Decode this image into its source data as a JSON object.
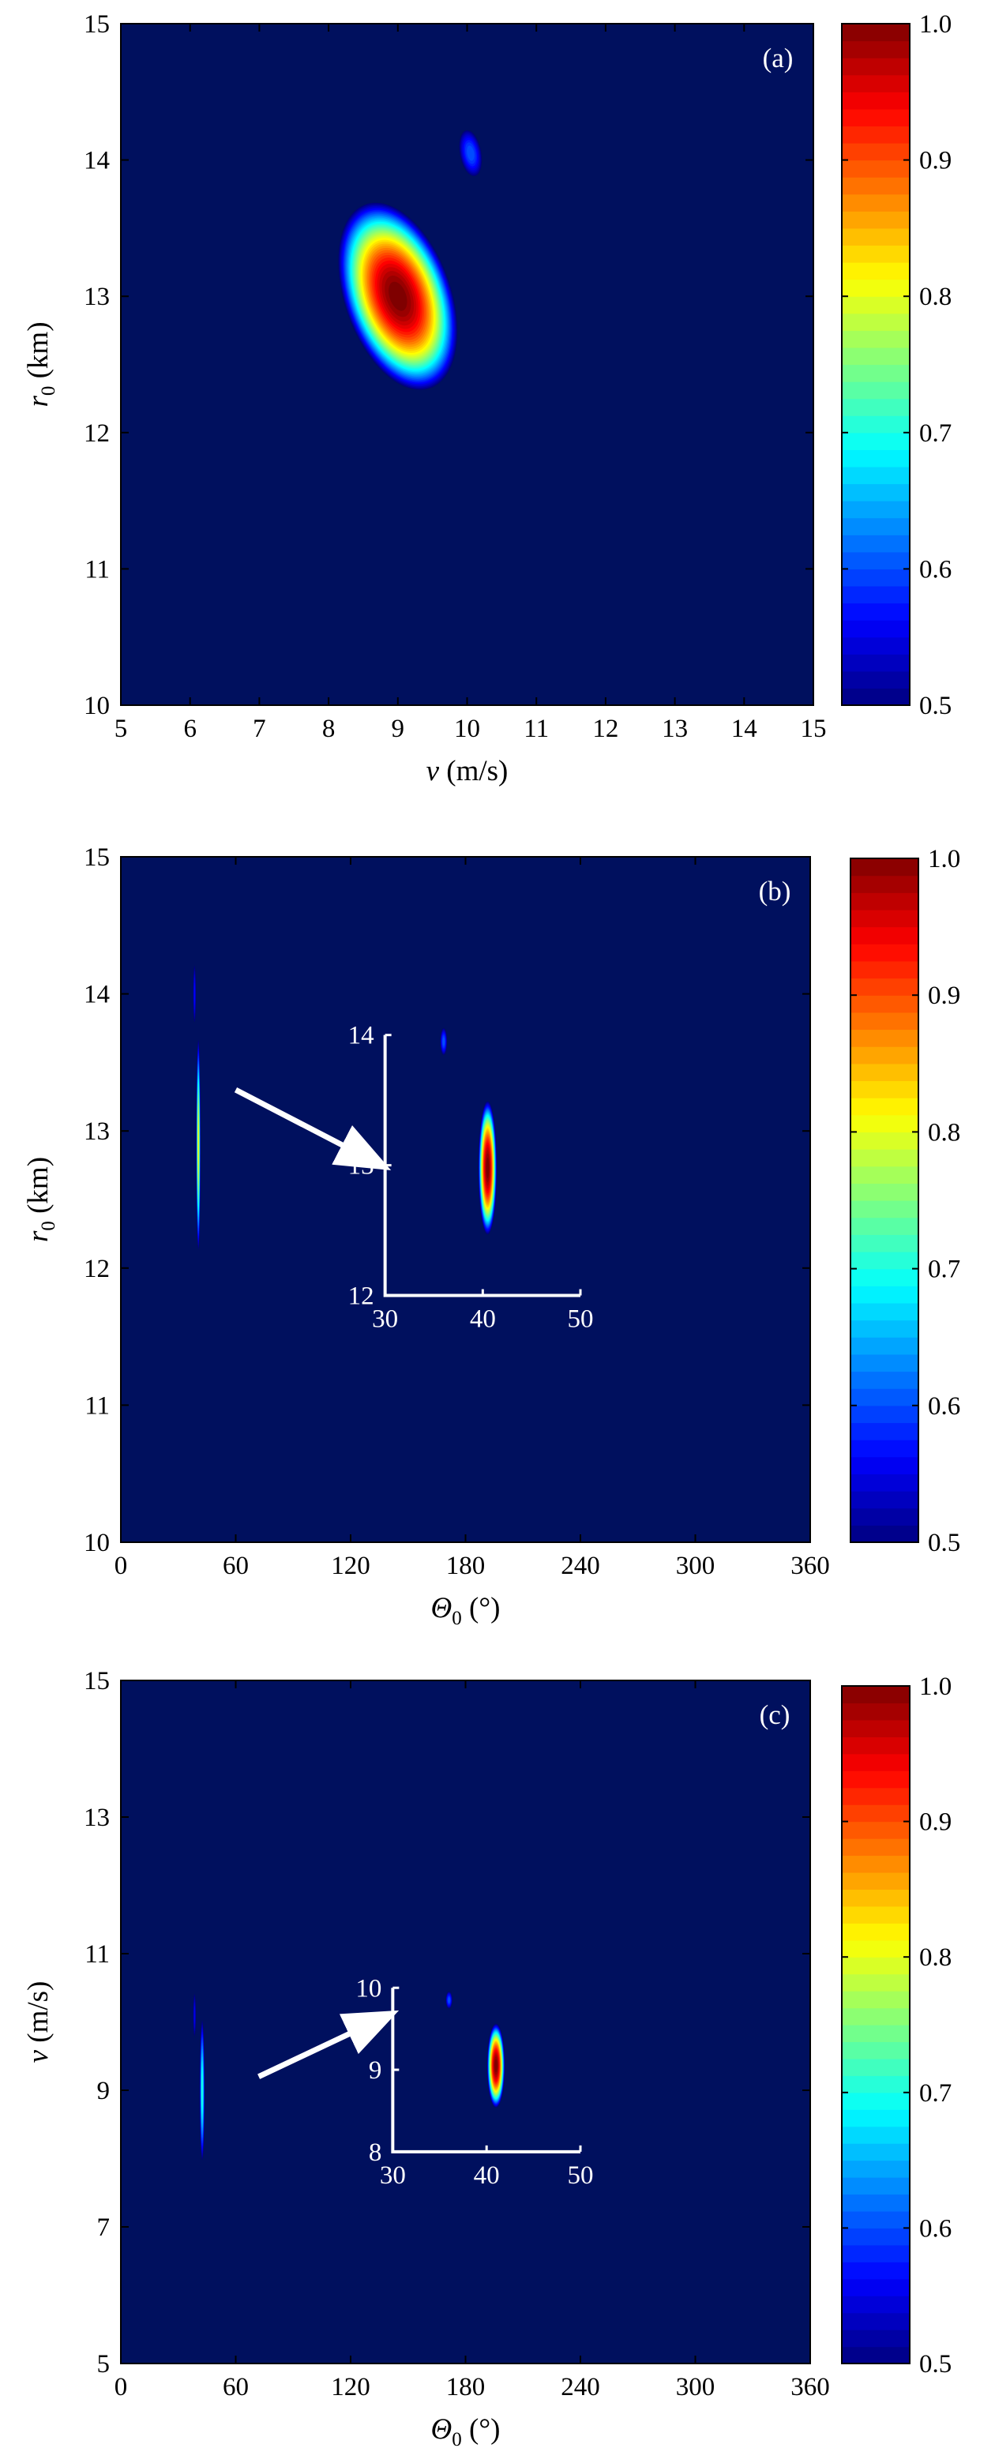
{
  "colormap": {
    "stops": [
      "#00007f",
      "#0000ff",
      "#007fff",
      "#00ffff",
      "#7fff7f",
      "#ffff00",
      "#ff7f00",
      "#ff0000",
      "#7f0000"
    ],
    "background": "#00105e",
    "levels": 40
  },
  "chart_data": [
    {
      "type": "heatmap",
      "panel_label": "(a)",
      "xlabel": {
        "sym": "v",
        "sub": "",
        "unit": " (m/s)"
      },
      "ylabel": {
        "sym": "r",
        "sub": "0",
        "unit": " (km)"
      },
      "xlim": [
        5,
        15
      ],
      "ylim": [
        10,
        15
      ],
      "xticks": [
        5,
        6,
        7,
        8,
        9,
        10,
        11,
        12,
        13,
        14,
        15
      ],
      "yticks": [
        10,
        11,
        12,
        13,
        14,
        15
      ],
      "colorbar": {
        "range": [
          0.5,
          1.0
        ],
        "ticks": [
          "0.5",
          "0.6",
          "0.7",
          "0.8",
          "0.9",
          "1.0"
        ]
      },
      "peaks": [
        {
          "x": 9.0,
          "y": 13.0,
          "value": 1.0,
          "sx": 0.45,
          "sy": 0.42,
          "rho": -0.55
        },
        {
          "x": 10.05,
          "y": 14.05,
          "value": 0.6,
          "sx": 0.09,
          "sy": 0.1,
          "rho": -0.3
        }
      ],
      "arrow": null,
      "inset": null
    },
    {
      "type": "heatmap",
      "panel_label": "(b)",
      "xlabel": {
        "sym": "Θ",
        "sub": "0",
        "unit": " (°)"
      },
      "ylabel": {
        "sym": "r",
        "sub": "0",
        "unit": " (km)"
      },
      "xlim": [
        0,
        360
      ],
      "ylim": [
        10,
        15
      ],
      "xticks": [
        0,
        60,
        120,
        180,
        240,
        300,
        360
      ],
      "yticks": [
        10,
        11,
        12,
        13,
        14,
        15
      ],
      "colorbar": {
        "range": [
          0.5,
          1.0
        ],
        "ticks": [
          "0.5",
          "0.6",
          "0.7",
          "0.8",
          "0.9",
          "1.0"
        ]
      },
      "peaks": [
        {
          "x": 40.5,
          "y": 12.9,
          "value": 0.8,
          "sx": 0.6,
          "sy": 0.45,
          "rho": 0
        },
        {
          "x": 38.5,
          "y": 14.0,
          "value": 0.56,
          "sx": 0.4,
          "sy": 0.12,
          "rho": 0
        }
      ],
      "arrow": {
        "from": [
          60,
          13.3
        ],
        "to": [
          136,
          12.75
        ]
      },
      "inset": {
        "xlim": [
          30,
          50
        ],
        "ylim": [
          12,
          14
        ],
        "xticks": [
          30,
          40,
          50
        ],
        "yticks": [
          12,
          13,
          14
        ],
        "frame_x": [
          138,
          240
        ],
        "frame_y": [
          11.8,
          13.7
        ],
        "peaks": [
          {
            "x": 40.5,
            "y": 12.98,
            "value": 1.0,
            "sx": 0.55,
            "sy": 0.3,
            "rho": 0
          },
          {
            "x": 36.0,
            "y": 13.95,
            "value": 0.6,
            "sx": 0.2,
            "sy": 0.06,
            "rho": 0
          }
        ]
      }
    },
    {
      "type": "heatmap",
      "panel_label": "(c)",
      "xlabel": {
        "sym": "Θ",
        "sub": "0",
        "unit": " (°)"
      },
      "ylabel": {
        "sym": "v",
        "sub": "",
        "unit": " (m/s)"
      },
      "xlim": [
        0,
        360
      ],
      "ylim": [
        5,
        15
      ],
      "xticks": [
        0,
        60,
        120,
        180,
        240,
        300,
        360
      ],
      "yticks": [
        5,
        7,
        9,
        11,
        13,
        15
      ],
      "colorbar": {
        "range": [
          0.5,
          1.0
        ],
        "ticks": [
          "0.5",
          "0.6",
          "0.7",
          "0.8",
          "0.9",
          "1.0"
        ]
      },
      "peaks": [
        {
          "x": 42.5,
          "y": 9.0,
          "value": 0.7,
          "sx": 0.7,
          "sy": 0.6,
          "rho": 0
        },
        {
          "x": 38.5,
          "y": 10.1,
          "value": 0.55,
          "sx": 0.4,
          "sy": 0.18,
          "rho": 0
        }
      ],
      "arrow": {
        "from": [
          72,
          9.2
        ],
        "to": [
          140,
          10.1
        ]
      },
      "inset": {
        "xlim": [
          30,
          50
        ],
        "ylim": [
          8,
          10
        ],
        "xticks": [
          30,
          40,
          50
        ],
        "yticks": [
          8,
          9,
          10
        ],
        "frame_x": [
          142,
          240
        ],
        "frame_y": [
          8.1,
          10.5
        ],
        "peaks": [
          {
            "x": 41.0,
            "y": 9.05,
            "value": 1.0,
            "sx": 0.55,
            "sy": 0.3,
            "rho": 0
          },
          {
            "x": 36.0,
            "y": 9.85,
            "value": 0.6,
            "sx": 0.2,
            "sy": 0.06,
            "rho": 0
          }
        ]
      }
    }
  ]
}
